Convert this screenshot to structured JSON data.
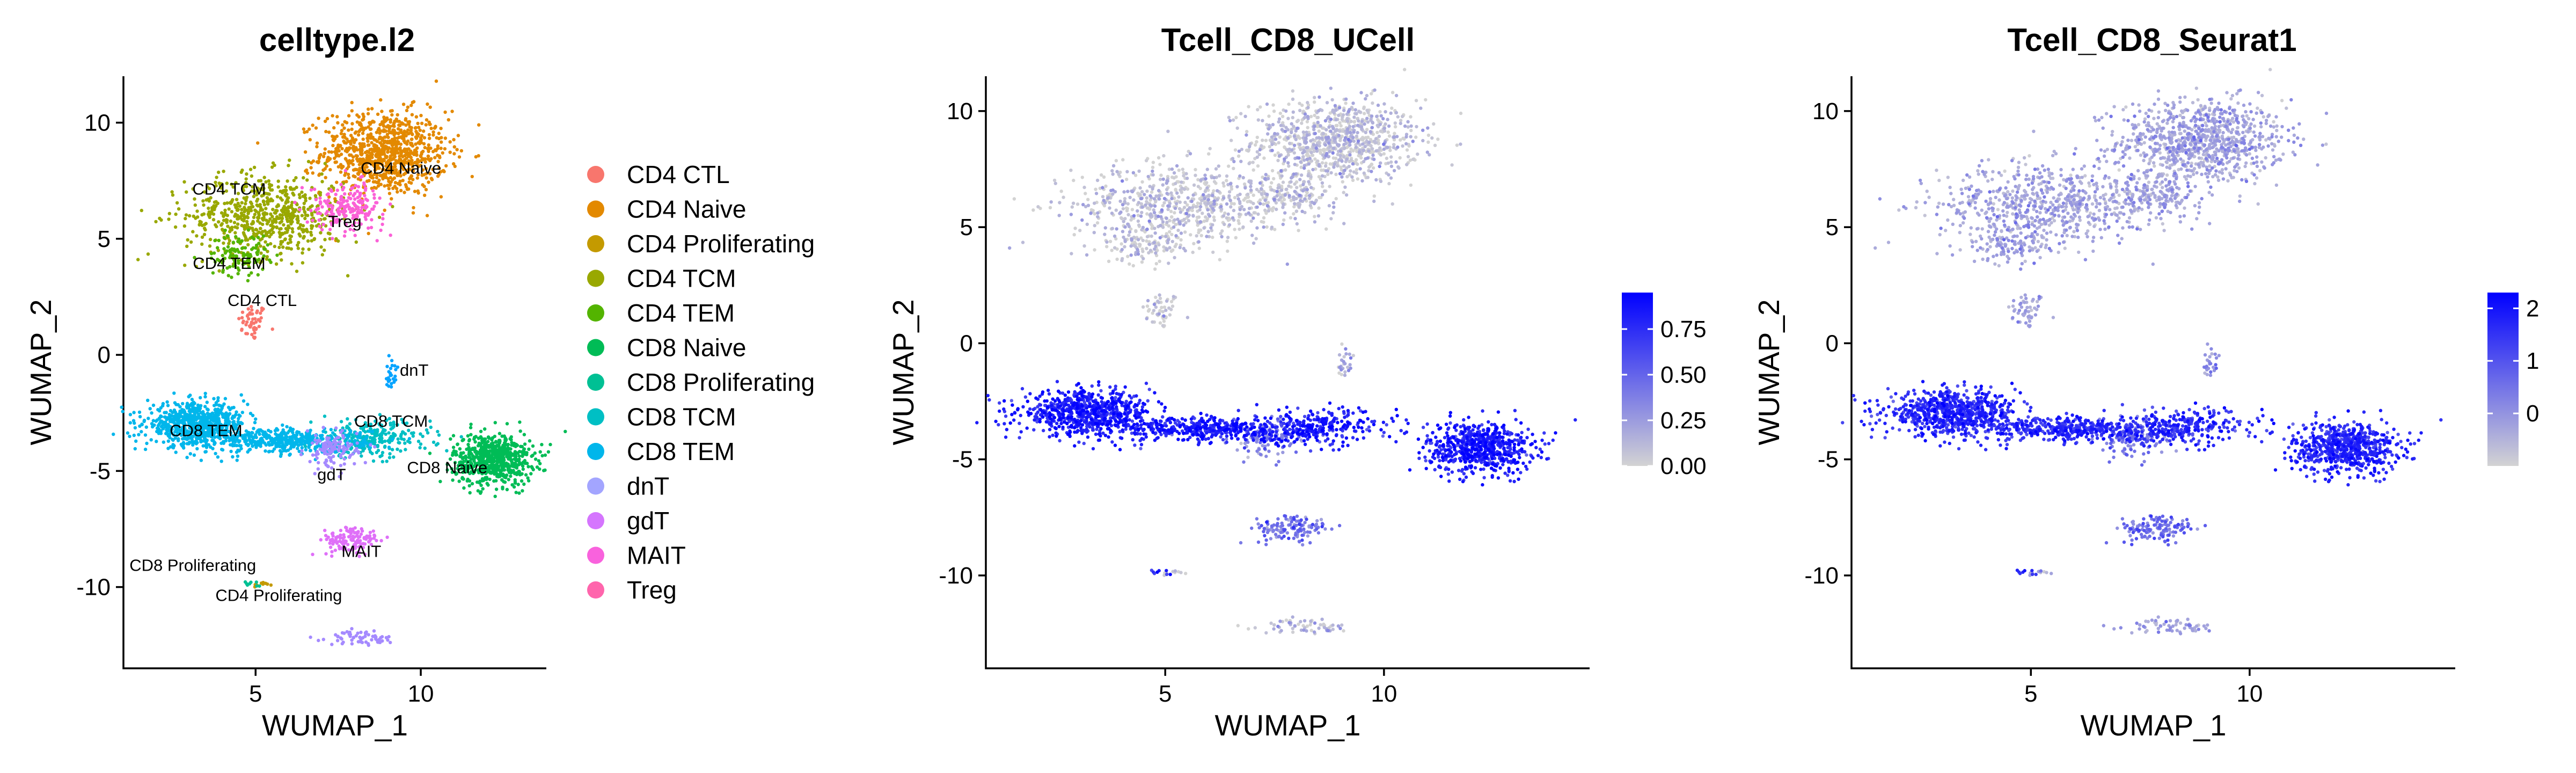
{
  "chart_data": [
    {
      "type": "scatter",
      "title": "celltype.l2",
      "xlabel": "WUMAP_1",
      "ylabel": "WUMAP_2",
      "xlim": [
        1.0,
        13.8
      ],
      "ylim": [
        -13.5,
        12.0
      ],
      "xticks": [
        5,
        10
      ],
      "yticks": [
        -10,
        -5,
        0,
        5,
        10
      ],
      "legend_position": "right",
      "series": [
        {
          "name": "CD4 CTL",
          "color": "#F8766D",
          "clusters": [
            {
              "x": 4.9,
              "y": 1.4,
              "sx": 0.22,
              "sy": 0.4,
              "n": 50
            }
          ]
        },
        {
          "name": "CD4 Naive",
          "color": "#E38900",
          "clusters": [
            {
              "x": 8.9,
              "y": 8.7,
              "sx": 0.95,
              "sy": 0.9,
              "n": 900
            }
          ]
        },
        {
          "name": "CD4 Proliferating",
          "color": "#C49A00",
          "clusters": [
            {
              "x": 5.2,
              "y": -9.9,
              "sx": 0.12,
              "sy": 0.06,
              "n": 10
            }
          ]
        },
        {
          "name": "CD4 TCM",
          "color": "#99A800",
          "clusters": [
            {
              "x": 5.3,
              "y": 6.0,
              "sx": 1.2,
              "sy": 0.9,
              "n": 650
            }
          ]
        },
        {
          "name": "CD4 TEM",
          "color": "#53B400",
          "clusters": [
            {
              "x": 4.5,
              "y": 4.3,
              "sx": 0.45,
              "sy": 0.45,
              "n": 110
            }
          ]
        },
        {
          "name": "CD8 Naive",
          "color": "#00BC56",
          "clusters": [
            {
              "x": 12.2,
              "y": -4.5,
              "sx": 0.6,
              "sy": 0.55,
              "n": 700
            }
          ]
        },
        {
          "name": "CD8 Proliferating",
          "color": "#00C094",
          "clusters": [
            {
              "x": 4.9,
              "y": -9.85,
              "sx": 0.12,
              "sy": 0.06,
              "n": 8
            }
          ]
        },
        {
          "name": "CD8 TCM",
          "color": "#00BFC4",
          "clusters": [
            {
              "x": 8.5,
              "y": -3.6,
              "sx": 0.9,
              "sy": 0.4,
              "n": 260
            }
          ]
        },
        {
          "name": "CD8 TEM",
          "color": "#00B6EB",
          "clusters": [
            {
              "x": 3.2,
              "y": -3.0,
              "sx": 0.75,
              "sy": 0.45,
              "n": 700
            },
            {
              "x": 6.0,
              "y": -3.7,
              "sx": 1.2,
              "sy": 0.25,
              "n": 450
            }
          ]
        },
        {
          "name": "dnT",
          "color": "#06A4FF",
          "clusters": [
            {
              "x": 9.1,
              "y": -1.0,
              "sx": 0.1,
              "sy": 0.35,
              "n": 25
            }
          ]
        },
        {
          "name": "gdT",
          "color": "#A58AFF",
          "clusters": [
            {
              "x": 7.3,
              "y": -4.1,
              "sx": 0.4,
              "sy": 0.4,
              "n": 120
            },
            {
              "x": 8.2,
              "y": -12.2,
              "sx": 0.5,
              "sy": 0.15,
              "n": 60
            }
          ]
        },
        {
          "name": "MAIT",
          "color": "#DF70F8",
          "clusters": [
            {
              "x": 7.9,
              "y": -8.0,
              "sx": 0.45,
              "sy": 0.3,
              "n": 130
            }
          ]
        },
        {
          "name": "Treg",
          "color": "#FB61D7",
          "clusters": [
            {
              "x": 7.8,
              "y": 6.4,
              "sx": 0.55,
              "sy": 0.5,
              "n": 200
            }
          ]
        }
      ],
      "legend_dot_colors": [
        "#F8766D",
        "#E38900",
        "#C49A00",
        "#99A800",
        "#53B400",
        "#00BC56",
        "#00C094",
        "#00BFC4",
        "#00B6EB",
        "#A3A5FF",
        "#D575FE",
        "#F962DD",
        "#FF65AC"
      ],
      "cluster_labels": [
        {
          "text": "CD4 Naive",
          "x": 9.4,
          "y": 7.8
        },
        {
          "text": "CD4 TCM",
          "x": 4.2,
          "y": 6.9
        },
        {
          "text": "Treg",
          "x": 7.7,
          "y": 5.5
        },
        {
          "text": "CD4 TEM",
          "x": 4.2,
          "y": 3.7
        },
        {
          "text": "CD4 CTL",
          "x": 5.2,
          "y": 2.1
        },
        {
          "text": "dnT",
          "x": 9.8,
          "y": -0.9
        },
        {
          "text": "CD8 TEM",
          "x": 3.5,
          "y": -3.5
        },
        {
          "text": "CD8 TCM",
          "x": 9.1,
          "y": -3.1
        },
        {
          "text": "CD8 Naive",
          "x": 10.8,
          "y": -5.1
        },
        {
          "text": "gdT",
          "x": 7.3,
          "y": -5.4
        },
        {
          "text": "MAIT",
          "x": 8.2,
          "y": -8.7
        },
        {
          "text": "CD8 Proliferating",
          "x": 3.1,
          "y": -9.3
        },
        {
          "text": "CD4 Proliferating",
          "x": 5.7,
          "y": -10.6
        }
      ]
    },
    {
      "type": "scatter",
      "title": "Tcell_CD8_UCell",
      "xlabel": "WUMAP_1",
      "ylabel": "WUMAP_2",
      "xlim": [
        0.9,
        14.7
      ],
      "ylim": [
        -14.0,
        11.5
      ],
      "xticks": [
        5,
        10
      ],
      "yticks": [
        -10,
        -5,
        0,
        5,
        10
      ],
      "color_scale": {
        "low": "#D3D3D3",
        "high": "#0000FF",
        "min": 0.0,
        "max": 0.95
      },
      "colorbar_ticks": [
        "0.75",
        "0.50",
        "0.25",
        "0.00"
      ],
      "colorbar_tick_values": [
        0.75,
        0.5,
        0.25,
        0.0
      ],
      "legend_position": "right"
    },
    {
      "type": "scatter",
      "title": "Tcell_CD8_Seurat1",
      "xlabel": "WUMAP_1",
      "ylabel": "WUMAP_2",
      "xlim": [
        0.9,
        14.7
      ],
      "ylim": [
        -14.0,
        11.5
      ],
      "xticks": [
        5,
        10
      ],
      "yticks": [
        -10,
        -5,
        0,
        5,
        10
      ],
      "color_scale": {
        "low": "#D3D3D3",
        "high": "#0000FF",
        "min": -1.0,
        "max": 2.3
      },
      "colorbar_ticks": [
        "2",
        "1",
        "0"
      ],
      "colorbar_tick_values": [
        2,
        1,
        0
      ],
      "legend_position": "right"
    }
  ]
}
